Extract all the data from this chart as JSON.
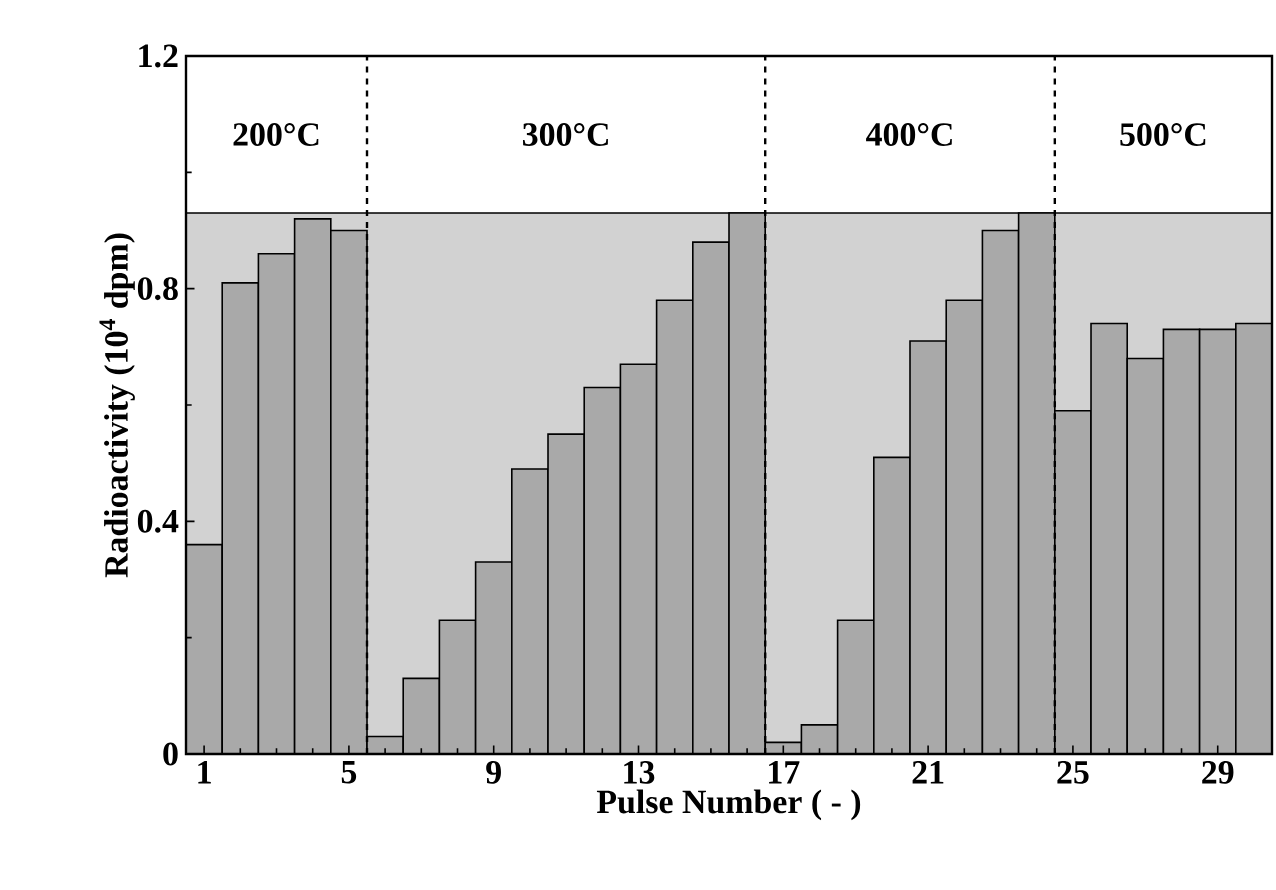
{
  "chart_data": {
    "type": "bar",
    "xlabel": "Pulse Number ( - )",
    "ylabel": "Radioactivity (10$^{4}$ dpm)",
    "x": [
      1,
      2,
      3,
      4,
      5,
      6,
      7,
      8,
      9,
      10,
      11,
      12,
      13,
      14,
      15,
      16,
      17,
      18,
      19,
      20,
      21,
      22,
      23,
      24,
      25,
      26,
      27,
      28,
      29,
      30
    ],
    "values": [
      0.36,
      0.81,
      0.86,
      0.92,
      0.9,
      0.03,
      0.13,
      0.23,
      0.33,
      0.49,
      0.55,
      0.63,
      0.67,
      0.78,
      0.88,
      0.93,
      0.02,
      0.05,
      0.23,
      0.51,
      0.71,
      0.78,
      0.9,
      0.93,
      0.59,
      0.74,
      0.68,
      0.73,
      0.73,
      0.74
    ],
    "color": "#a9a9a9",
    "xlim": [
      0.5,
      30.5
    ],
    "ylim": [
      0,
      1.2
    ],
    "xticks": [
      1,
      5,
      9,
      13,
      17,
      21,
      25,
      29
    ],
    "yticks": [
      0,
      0.4,
      0.8,
      1.2
    ],
    "bands": [
      {
        "axis": "y",
        "from": 0,
        "to": 0.93,
        "color": "#d2d2d2"
      }
    ],
    "ref_lines": [
      {
        "axis": "x",
        "value": 5.5,
        "line_style": "dashed"
      },
      {
        "axis": "x",
        "value": 16.5,
        "line_style": "dashed"
      },
      {
        "axis": "x",
        "value": 24.5,
        "line_style": "dashed"
      }
    ],
    "annotations": [
      "200°C",
      "300°C",
      "400°C",
      "500°C"
    ]
  }
}
